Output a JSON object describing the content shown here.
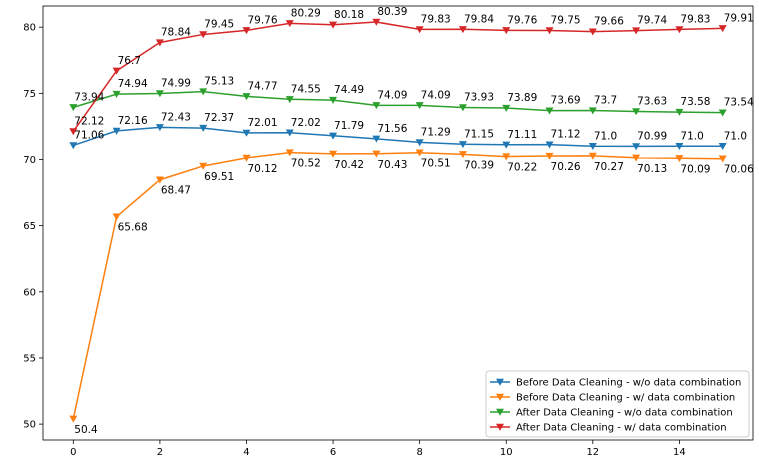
{
  "chart_data": {
    "type": "line",
    "title": "",
    "xlabel": "",
    "ylabel": "",
    "xlim": [
      -0.7,
      15.7
    ],
    "ylim": [
      48.8,
      81.6
    ],
    "xticks": [
      0,
      2,
      4,
      6,
      8,
      10,
      12,
      14
    ],
    "yticks": [
      50,
      55,
      60,
      65,
      70,
      75,
      80
    ],
    "grid": false,
    "legend_position": "bottom-right",
    "x": [
      0,
      1,
      2,
      3,
      4,
      5,
      6,
      7,
      8,
      9,
      10,
      11,
      12,
      13,
      14,
      15
    ],
    "series": [
      {
        "name": "Before Data Cleaning - w/o data combination",
        "color": "#1f77b4",
        "values": [
          71.06,
          72.16,
          72.43,
          72.37,
          72.01,
          72.02,
          71.79,
          71.56,
          71.29,
          71.15,
          71.11,
          71.12,
          71.0,
          70.99,
          71.0,
          71.0
        ],
        "labels": [
          "71.06",
          "72.16",
          "72.43",
          "72.37",
          "72.01",
          "72.02",
          "71.79",
          "71.56",
          "71.29",
          "71.15",
          "71.11",
          "71.12",
          "71.0",
          "70.99",
          "71.0",
          "71.0"
        ],
        "label_placement": "above"
      },
      {
        "name": "Before Data Cleaning - w/ data combination",
        "color": "#ff7f0e",
        "values": [
          50.4,
          65.68,
          68.47,
          69.51,
          70.12,
          70.52,
          70.42,
          70.43,
          70.51,
          70.39,
          70.22,
          70.26,
          70.27,
          70.13,
          70.09,
          70.06
        ],
        "labels": [
          "50.4",
          "65.68",
          "68.47",
          "69.51",
          "70.12",
          "70.52",
          "70.42",
          "70.43",
          "70.51",
          "70.39",
          "70.22",
          "70.26",
          "70.27",
          "70.13",
          "70.09",
          "70.06"
        ],
        "label_placement": "below"
      },
      {
        "name": "After Data Cleaning - w/o data combination",
        "color": "#2ca02c",
        "values": [
          73.94,
          74.94,
          74.99,
          75.13,
          74.77,
          74.55,
          74.49,
          74.09,
          74.09,
          73.93,
          73.89,
          73.69,
          73.7,
          73.63,
          73.58,
          73.54
        ],
        "labels": [
          "73.94",
          "74.94",
          "74.99",
          "75.13",
          "74.77",
          "74.55",
          "74.49",
          "74.09",
          "74.09",
          "73.93",
          "73.89",
          "73.69",
          "73.7",
          "73.63",
          "73.58",
          "73.54"
        ],
        "label_placement": "above"
      },
      {
        "name": "After Data Cleaning - w/ data combination",
        "color": "#d62728",
        "values": [
          72.12,
          76.7,
          78.84,
          79.45,
          79.76,
          80.29,
          80.18,
          80.39,
          79.83,
          79.84,
          79.76,
          79.75,
          79.66,
          79.74,
          79.83,
          79.91
        ],
        "labels": [
          "72.12",
          "76.7",
          "78.84",
          "79.45",
          "79.76",
          "80.29",
          "80.18",
          "80.39",
          "79.83",
          "79.84",
          "79.76",
          "79.75",
          "79.66",
          "79.74",
          "79.83",
          "79.91"
        ],
        "label_placement": "above"
      }
    ]
  }
}
